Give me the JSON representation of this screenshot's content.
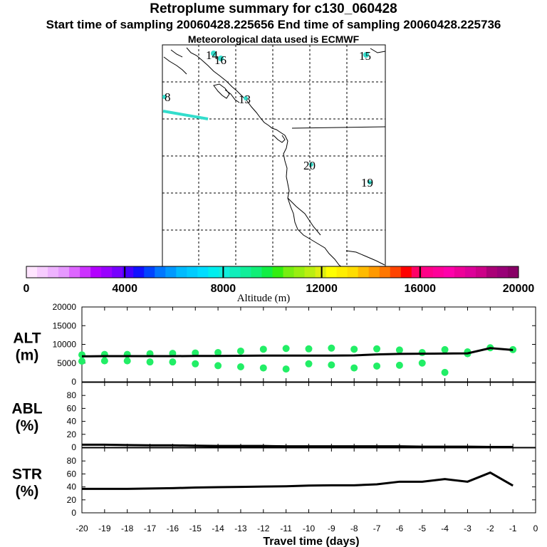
{
  "header": {
    "title": "Retroplume summary for c130_060428",
    "sampling": "Start time of sampling 20060428.225656     End time of sampling 20060428.225736",
    "meteo": "Meteorological data used is ECMWF"
  },
  "map": {
    "trajectory_color": "#33ddcc",
    "point_labels": [
      "14",
      "16",
      "15",
      "8",
      "13",
      "20",
      "19"
    ]
  },
  "colorbar": {
    "label": "Altitude (m)",
    "tick_labels": [
      "0",
      "4000",
      "8000",
      "12000",
      "16000",
      "20000"
    ],
    "colors": [
      "#ffe5ff",
      "#f7ccff",
      "#eeb3ff",
      "#e699ff",
      "#dd66ff",
      "#cc33ff",
      "#b300ff",
      "#9900ff",
      "#7700ff",
      "#4400ff",
      "#1111ff",
      "#0044ff",
      "#0077ff",
      "#0099ff",
      "#00bbff",
      "#00ccff",
      "#00ddff",
      "#00eeee",
      "#11eedd",
      "#11eebb",
      "#11ee99",
      "#11ee77",
      "#11ee44",
      "#33ee11",
      "#77ee11",
      "#99ee11",
      "#bbee11",
      "#ddee11",
      "#ffff00",
      "#ffee00",
      "#ffdd00",
      "#ffbb00",
      "#ff9900",
      "#ff7700",
      "#ff4400",
      "#ff0000",
      "#ff0066",
      "#ff0088",
      "#ff0099",
      "#ff00aa",
      "#ee0099",
      "#dd0099",
      "#cc0088",
      "#aa0077",
      "#990077",
      "#880066"
    ]
  },
  "chart_data": [
    {
      "type": "scatter",
      "panel": "ALT",
      "ylabel_line1": "ALT",
      "ylabel_line2": "(m)",
      "ylim": [
        0,
        20000
      ],
      "yticks": [
        "0",
        "5000",
        "10000",
        "15000",
        "20000"
      ],
      "dot_color": "#22ee66",
      "mean_line": {
        "x": [
          -20,
          -19,
          -18,
          -17,
          -16,
          -15,
          -14,
          -13,
          -12,
          -11,
          -10,
          -9,
          -8,
          -7,
          -6,
          -5,
          -4,
          -3,
          -2,
          -1
        ],
        "y": [
          6800,
          6850,
          6850,
          6850,
          6850,
          6900,
          6900,
          6950,
          7000,
          7000,
          7000,
          7000,
          7050,
          7300,
          7450,
          7500,
          7550,
          7600,
          9000,
          8500
        ]
      },
      "dots": [
        {
          "x": -20,
          "y": [
            5500,
            7200
          ]
        },
        {
          "x": -19,
          "y": [
            5600,
            7300
          ]
        },
        {
          "x": -18,
          "y": [
            5600,
            7300
          ]
        },
        {
          "x": -17,
          "y": [
            5300,
            7500
          ]
        },
        {
          "x": -16,
          "y": [
            5300,
            7600
          ]
        },
        {
          "x": -15,
          "y": [
            4800,
            7700
          ]
        },
        {
          "x": -14,
          "y": [
            4300,
            7800
          ]
        },
        {
          "x": -13,
          "y": [
            4000,
            8200
          ]
        },
        {
          "x": -12,
          "y": [
            3700,
            8700
          ]
        },
        {
          "x": -11,
          "y": [
            3400,
            8900
          ]
        },
        {
          "x": -10,
          "y": [
            4800,
            8800
          ]
        },
        {
          "x": -9,
          "y": [
            4500,
            9000
          ]
        },
        {
          "x": -8,
          "y": [
            3700,
            8700
          ]
        },
        {
          "x": -7,
          "y": [
            4200,
            8800
          ]
        },
        {
          "x": -6,
          "y": [
            4400,
            8500
          ]
        },
        {
          "x": -5,
          "y": [
            5000,
            7800
          ]
        },
        {
          "x": -4,
          "y": [
            2500,
            8600
          ]
        },
        {
          "x": -3,
          "y": [
            7500,
            8000
          ]
        },
        {
          "x": -2,
          "y": [
            9100
          ]
        },
        {
          "x": -1,
          "y": [
            8600
          ]
        }
      ]
    },
    {
      "type": "line",
      "panel": "ABL",
      "ylabel_line1": "ABL",
      "ylabel_line2": "(%)",
      "ylim": [
        0,
        100
      ],
      "yticks": [
        "0",
        "20",
        "40",
        "60",
        "80"
      ],
      "x": [
        -20,
        -19,
        -18,
        -17,
        -16,
        -15,
        -14,
        -13,
        -12,
        -11,
        -10,
        -9,
        -8,
        -7,
        -6,
        -5,
        -4,
        -3,
        -2,
        -1
      ],
      "y": [
        4,
        4,
        3.5,
        3,
        3,
        2.5,
        2,
        2,
        2,
        1.5,
        1.5,
        1.5,
        1.5,
        1.5,
        1.5,
        1,
        1,
        1,
        0.5,
        0.5
      ]
    },
    {
      "type": "line",
      "panel": "STR",
      "ylabel_line1": "STR",
      "ylabel_line2": "(%)",
      "ylim": [
        0,
        100
      ],
      "yticks": [
        "0",
        "20",
        "40",
        "60",
        "80"
      ],
      "x": [
        -20,
        -19,
        -18,
        -17,
        -16,
        -15,
        -14,
        -13,
        -12,
        -11,
        -10,
        -9,
        -8,
        -7,
        -6,
        -5,
        -4,
        -3,
        -2,
        -1
      ],
      "y": [
        37,
        37,
        37,
        37.5,
        38,
        39,
        39.5,
        40,
        40.5,
        41,
        42,
        42.5,
        42.5,
        44,
        48,
        48,
        52,
        48,
        62,
        42
      ]
    }
  ],
  "xaxis": {
    "label": "Travel time (days)",
    "tick_labels": [
      "-20",
      "-19",
      "-18",
      "-17",
      "-16",
      "-15",
      "-14",
      "-13",
      "-12",
      "-11",
      "-10",
      "-9",
      "-8",
      "-7",
      "-6",
      "-5",
      "-4",
      "-3",
      "-2",
      "-1",
      "0"
    ]
  }
}
